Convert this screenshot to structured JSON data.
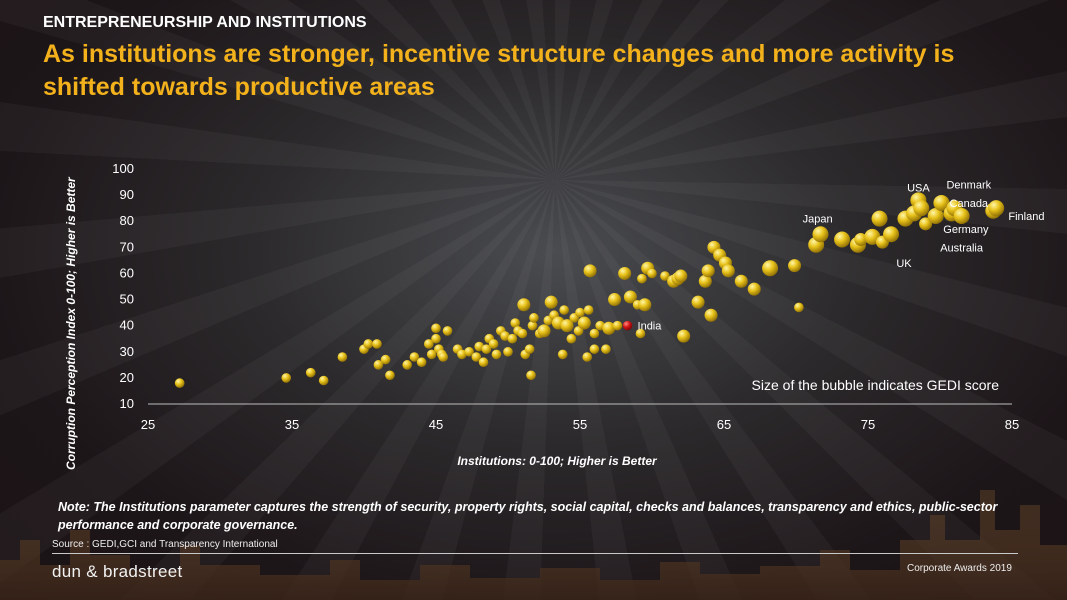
{
  "header": {
    "kicker": "ENTREPRENEURSHIP AND INSTITUTIONS",
    "headline": "As institutions are stronger, incentive structure changes and more activity is shifted towards productive areas"
  },
  "chart_data": {
    "type": "scatter",
    "xlabel": "Institutions: 0-100;  Higher is Better",
    "ylabel": "Corruption Perception Index  0-100;  Higher is Better",
    "xlim": [
      25,
      85
    ],
    "ylim": [
      10,
      100
    ],
    "x_ticks": [
      25,
      35,
      45,
      55,
      65,
      75,
      85
    ],
    "y_ticks": [
      10,
      20,
      30,
      40,
      50,
      60,
      70,
      80,
      90,
      100
    ],
    "grid": false,
    "annotation": "Size of the bubble indicates GEDI score",
    "colors": {
      "bubble": "#e8c21a",
      "highlight": "#cc1111",
      "label": "#ffffff"
    },
    "points": [
      {
        "x": 27.2,
        "y": 18,
        "s": 1
      },
      {
        "x": 34.6,
        "y": 20,
        "s": 1
      },
      {
        "x": 36.3,
        "y": 22,
        "s": 1
      },
      {
        "x": 37.2,
        "y": 19,
        "s": 1
      },
      {
        "x": 38.5,
        "y": 28,
        "s": 1
      },
      {
        "x": 40.0,
        "y": 31,
        "s": 1
      },
      {
        "x": 40.3,
        "y": 33,
        "s": 1
      },
      {
        "x": 40.9,
        "y": 33,
        "s": 1
      },
      {
        "x": 41.0,
        "y": 25,
        "s": 1
      },
      {
        "x": 41.5,
        "y": 27,
        "s": 1
      },
      {
        "x": 41.8,
        "y": 21,
        "s": 1
      },
      {
        "x": 43.0,
        "y": 25,
        "s": 1
      },
      {
        "x": 43.5,
        "y": 28,
        "s": 1
      },
      {
        "x": 44.0,
        "y": 26,
        "s": 1
      },
      {
        "x": 44.5,
        "y": 33,
        "s": 1
      },
      {
        "x": 44.7,
        "y": 29,
        "s": 1
      },
      {
        "x": 45.0,
        "y": 35,
        "s": 1
      },
      {
        "x": 45.0,
        "y": 39,
        "s": 1
      },
      {
        "x": 45.2,
        "y": 31,
        "s": 1
      },
      {
        "x": 45.4,
        "y": 29,
        "s": 1
      },
      {
        "x": 45.5,
        "y": 28,
        "s": 1
      },
      {
        "x": 45.8,
        "y": 38,
        "s": 1
      },
      {
        "x": 46.5,
        "y": 31,
        "s": 1
      },
      {
        "x": 46.8,
        "y": 29,
        "s": 1
      },
      {
        "x": 47.3,
        "y": 30,
        "s": 1
      },
      {
        "x": 47.8,
        "y": 28,
        "s": 1
      },
      {
        "x": 48.0,
        "y": 32,
        "s": 1
      },
      {
        "x": 48.3,
        "y": 26,
        "s": 1
      },
      {
        "x": 48.5,
        "y": 31,
        "s": 1
      },
      {
        "x": 48.7,
        "y": 35,
        "s": 1
      },
      {
        "x": 49.0,
        "y": 33,
        "s": 1
      },
      {
        "x": 49.2,
        "y": 29,
        "s": 1
      },
      {
        "x": 49.5,
        "y": 38,
        "s": 1
      },
      {
        "x": 49.8,
        "y": 36,
        "s": 1
      },
      {
        "x": 50.0,
        "y": 30,
        "s": 1
      },
      {
        "x": 50.3,
        "y": 35,
        "s": 1
      },
      {
        "x": 50.5,
        "y": 41,
        "s": 1
      },
      {
        "x": 50.7,
        "y": 38,
        "s": 1
      },
      {
        "x": 51.0,
        "y": 37,
        "s": 1
      },
      {
        "x": 51.1,
        "y": 48,
        "s": 2
      },
      {
        "x": 51.2,
        "y": 29,
        "s": 1
      },
      {
        "x": 51.5,
        "y": 31,
        "s": 1
      },
      {
        "x": 51.6,
        "y": 21,
        "s": 1
      },
      {
        "x": 51.7,
        "y": 40,
        "s": 1
      },
      {
        "x": 51.8,
        "y": 43,
        "s": 1
      },
      {
        "x": 52.2,
        "y": 37,
        "s": 1
      },
      {
        "x": 52.5,
        "y": 38,
        "s": 2
      },
      {
        "x": 52.8,
        "y": 42,
        "s": 1
      },
      {
        "x": 53.0,
        "y": 49,
        "s": 2
      },
      {
        "x": 53.2,
        "y": 44,
        "s": 1
      },
      {
        "x": 53.5,
        "y": 41,
        "s": 2
      },
      {
        "x": 53.8,
        "y": 29,
        "s": 1
      },
      {
        "x": 53.9,
        "y": 46,
        "s": 1
      },
      {
        "x": 54.1,
        "y": 40,
        "s": 2
      },
      {
        "x": 54.4,
        "y": 35,
        "s": 1
      },
      {
        "x": 54.6,
        "y": 43,
        "s": 1
      },
      {
        "x": 54.9,
        "y": 38,
        "s": 1
      },
      {
        "x": 55.0,
        "y": 45,
        "s": 1
      },
      {
        "x": 55.3,
        "y": 41,
        "s": 2
      },
      {
        "x": 55.5,
        "y": 28,
        "s": 1
      },
      {
        "x": 55.6,
        "y": 46,
        "s": 1
      },
      {
        "x": 55.7,
        "y": 61,
        "s": 2
      },
      {
        "x": 56.0,
        "y": 31,
        "s": 1
      },
      {
        "x": 56.0,
        "y": 37,
        "s": 1
      },
      {
        "x": 56.4,
        "y": 40,
        "s": 1
      },
      {
        "x": 56.8,
        "y": 31,
        "s": 1
      },
      {
        "x": 57.0,
        "y": 39,
        "s": 2
      },
      {
        "x": 57.4,
        "y": 50,
        "s": 2
      },
      {
        "x": 57.6,
        "y": 40,
        "s": 1
      },
      {
        "x": 58.1,
        "y": 60,
        "s": 2
      },
      {
        "x": 58.5,
        "y": 51,
        "s": 2
      },
      {
        "x": 59.0,
        "y": 48,
        "s": 1
      },
      {
        "x": 59.2,
        "y": 37,
        "s": 1
      },
      {
        "x": 59.3,
        "y": 58,
        "s": 1
      },
      {
        "x": 59.5,
        "y": 48,
        "s": 2
      },
      {
        "x": 59.7,
        "y": 62,
        "s": 2
      },
      {
        "x": 60.0,
        "y": 60,
        "s": 1
      },
      {
        "x": 60.9,
        "y": 59,
        "s": 1
      },
      {
        "x": 61.5,
        "y": 57,
        "s": 2
      },
      {
        "x": 61.8,
        "y": 58,
        "s": 2
      },
      {
        "x": 62.0,
        "y": 59,
        "s": 2
      },
      {
        "x": 62.2,
        "y": 36,
        "s": 2
      },
      {
        "x": 63.2,
        "y": 49,
        "s": 2
      },
      {
        "x": 63.7,
        "y": 57,
        "s": 2
      },
      {
        "x": 63.9,
        "y": 61,
        "s": 2
      },
      {
        "x": 64.1,
        "y": 44,
        "s": 2
      },
      {
        "x": 64.3,
        "y": 70,
        "s": 2
      },
      {
        "x": 64.7,
        "y": 67,
        "s": 2
      },
      {
        "x": 65.1,
        "y": 64,
        "s": 2
      },
      {
        "x": 65.3,
        "y": 61,
        "s": 2
      },
      {
        "x": 66.2,
        "y": 57,
        "s": 2
      },
      {
        "x": 67.1,
        "y": 54,
        "s": 2
      },
      {
        "x": 68.2,
        "y": 62,
        "s": 3
      },
      {
        "x": 69.9,
        "y": 63,
        "s": 2
      },
      {
        "x": 70.2,
        "y": 47,
        "s": 1
      },
      {
        "x": 71.4,
        "y": 71,
        "s": 3
      },
      {
        "x": 71.7,
        "y": 75,
        "s": 3
      },
      {
        "x": 73.2,
        "y": 73,
        "s": 3
      },
      {
        "x": 74.3,
        "y": 71,
        "s": 3
      },
      {
        "x": 74.5,
        "y": 73,
        "s": 2
      },
      {
        "x": 75.3,
        "y": 74,
        "s": 3
      },
      {
        "x": 75.8,
        "y": 81,
        "s": 3
      },
      {
        "x": 76.0,
        "y": 72,
        "s": 2
      },
      {
        "x": 76.6,
        "y": 75,
        "s": 3
      },
      {
        "x": 77.6,
        "y": 81,
        "s": 3
      },
      {
        "x": 78.2,
        "y": 83,
        "s": 3
      },
      {
        "x": 78.5,
        "y": 88,
        "s": 3
      },
      {
        "x": 78.7,
        "y": 85,
        "s": 3
      },
      {
        "x": 79.0,
        "y": 79,
        "s": 2
      },
      {
        "x": 79.7,
        "y": 82,
        "s": 3
      },
      {
        "x": 80.1,
        "y": 87,
        "s": 3
      },
      {
        "x": 80.8,
        "y": 83,
        "s": 3
      },
      {
        "x": 81.0,
        "y": 85,
        "s": 3
      },
      {
        "x": 81.5,
        "y": 82,
        "s": 3
      },
      {
        "x": 83.7,
        "y": 84,
        "s": 3
      },
      {
        "x": 83.9,
        "y": 85,
        "s": 3
      }
    ],
    "highlight": {
      "label": "India",
      "x": 58.3,
      "y": 40
    },
    "country_labels": [
      {
        "label": "USA",
        "x": 78.5,
        "y": 93
      },
      {
        "label": "Denmark",
        "x": 82.0,
        "y": 94
      },
      {
        "label": "Canada",
        "x": 82.0,
        "y": 87
      },
      {
        "label": "Japan",
        "x": 71.5,
        "y": 81
      },
      {
        "label": "Germany",
        "x": 81.8,
        "y": 77
      },
      {
        "label": "Finland",
        "x": 86.0,
        "y": 82
      },
      {
        "label": "Australia",
        "x": 81.5,
        "y": 70
      },
      {
        "label": "UK",
        "x": 77.5,
        "y": 64
      }
    ]
  },
  "footer": {
    "note": "Note: The Institutions parameter captures the strength of security, property rights, social capital, checks and balances, transparency and ethics, public-sector performance and corporate governance.",
    "source": "Source : GEDI,GCI and Transparency International",
    "brand": "dun & bradstreet",
    "event": "Corporate Awards 2019"
  }
}
